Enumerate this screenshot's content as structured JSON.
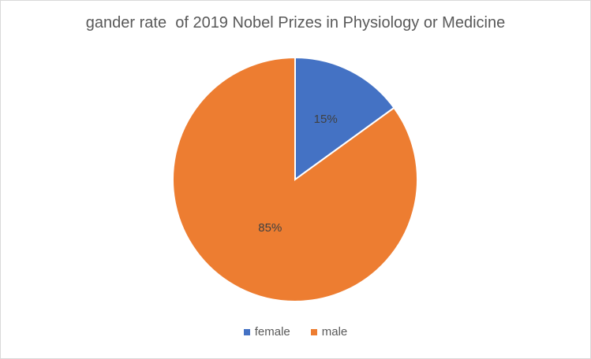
{
  "chart_data": {
    "type": "pie",
    "title": "gander rate  of 2019 Nobel Prizes in Physiology or Medicine",
    "categories": [
      "female",
      "male"
    ],
    "values": [
      15,
      85
    ],
    "data_labels": [
      "15%",
      "85%"
    ],
    "colors": [
      "#4472C4",
      "#ED7D31"
    ],
    "legend_position": "bottom",
    "start_angle": "12 o'clock, clockwise"
  }
}
